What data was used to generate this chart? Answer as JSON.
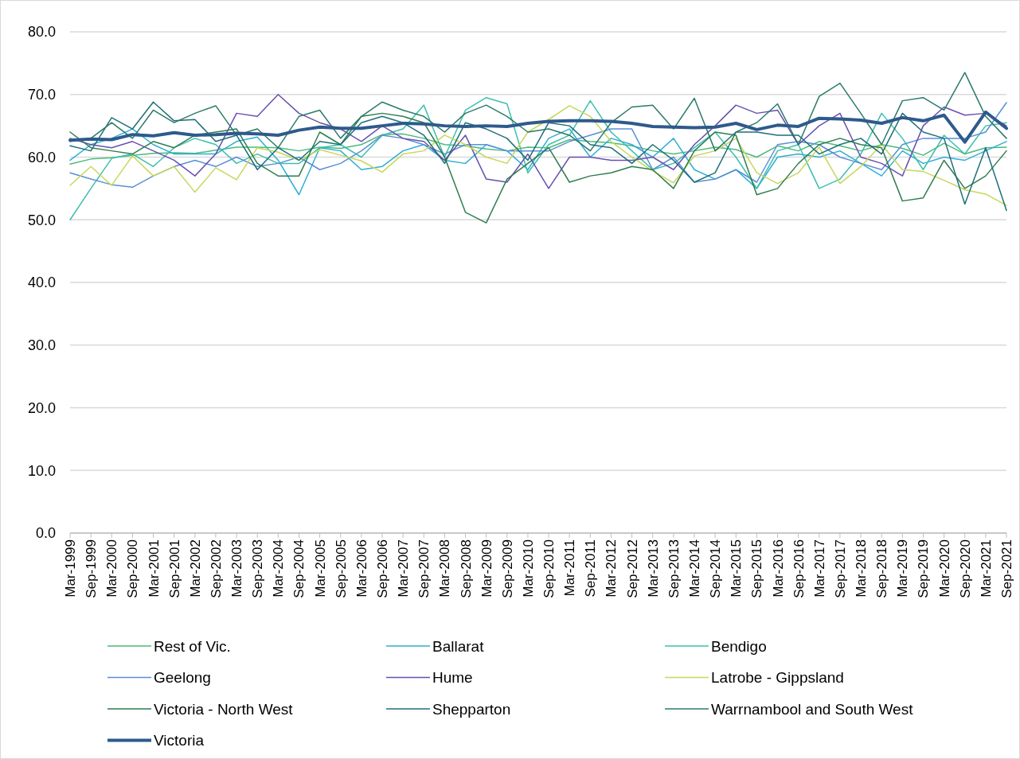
{
  "chart_data": {
    "type": "line",
    "categories": [
      "Mar-1999",
      "Sep-1999",
      "Mar-2000",
      "Sep-2000",
      "Mar-2001",
      "Sep-2001",
      "Mar-2002",
      "Sep-2002",
      "Mar-2003",
      "Sep-2003",
      "Mar-2004",
      "Sep-2004",
      "Mar-2005",
      "Sep-2005",
      "Mar-2006",
      "Sep-2006",
      "Mar-2007",
      "Sep-2007",
      "Mar-2008",
      "Sep-2008",
      "Mar-2009",
      "Sep-2009",
      "Mar-2010",
      "Sep-2010",
      "Mar-2011",
      "Sep-2011",
      "Mar-2012",
      "Sep-2012",
      "Mar-2013",
      "Sep-2013",
      "Mar-2014",
      "Sep-2014",
      "Mar-2015",
      "Sep-2015",
      "Mar-2016",
      "Sep-2016",
      "Mar-2017",
      "Sep-2017",
      "Mar-2018",
      "Sep-2018",
      "Mar-2019",
      "Sep-2019",
      "Mar-2020",
      "Sep-2020",
      "Mar-2021",
      "Sep-2021"
    ],
    "series": [
      {
        "name": "Rest of Vic.",
        "color": "#4cba78",
        "values": [
          58.9,
          59.7,
          59.9,
          60.3,
          60.6,
          60.7,
          60.6,
          61.1,
          61.6,
          61.6,
          61.5,
          61.0,
          61.6,
          61.4,
          62.0,
          63.6,
          63.7,
          63.0,
          62.0,
          61.8,
          61.3,
          61.0,
          61.6,
          61.5,
          62.8,
          62.5,
          62.3,
          61.8,
          61.0,
          60.5,
          61.0,
          61.6,
          61.2,
          60.0,
          61.8,
          61.0,
          62.5,
          61.8,
          61.0,
          62.0,
          61.4,
          60.3,
          62.2,
          60.5,
          61.5,
          61.6
        ]
      },
      {
        "name": "Ballarat",
        "color": "#2eaed6",
        "values": [
          59.5,
          62.0,
          63.0,
          64.5,
          62.0,
          60.5,
          60.5,
          60.5,
          62.5,
          63.2,
          59.5,
          54.0,
          61.5,
          61.0,
          58.0,
          58.5,
          61.0,
          62.0,
          59.5,
          59.0,
          62.0,
          61.0,
          58.0,
          63.0,
          64.5,
          60.0,
          63.0,
          62.0,
          60.0,
          63.0,
          58.0,
          56.5,
          58.0,
          55.0,
          60.0,
          60.5,
          60.0,
          61.0,
          59.0,
          57.0,
          61.0,
          59.0,
          60.0,
          59.5,
          61.0,
          62.5
        ]
      },
      {
        "name": "Bendigo",
        "color": "#3cbfae",
        "values": [
          50.0,
          55.0,
          59.8,
          60.5,
          58.5,
          61.5,
          63.0,
          62.0,
          59.0,
          60.5,
          59.0,
          59.0,
          61.5,
          62.0,
          60.0,
          63.5,
          64.5,
          68.3,
          60.0,
          67.5,
          69.5,
          68.5,
          57.5,
          62.0,
          63.5,
          69.0,
          64.0,
          61.0,
          58.0,
          59.0,
          61.5,
          64.0,
          60.0,
          55.0,
          61.0,
          62.0,
          55.0,
          56.5,
          60.5,
          67.0,
          63.0,
          58.0,
          63.5,
          60.5,
          65.0,
          65.5
        ]
      },
      {
        "name": "Geelong",
        "color": "#5b8fd6",
        "values": [
          57.5,
          56.5,
          55.6,
          55.2,
          57.0,
          58.5,
          59.5,
          58.5,
          60.0,
          58.5,
          59.0,
          60.0,
          58.0,
          59.0,
          61.0,
          63.5,
          63.0,
          62.0,
          60.5,
          62.0,
          62.0,
          61.0,
          61.0,
          61.0,
          62.5,
          63.5,
          64.5,
          64.5,
          58.0,
          60.0,
          56.0,
          56.5,
          58.0,
          56.0,
          62.0,
          62.5,
          62.0,
          60.0,
          59.0,
          58.0,
          62.0,
          63.0,
          63.0,
          63.0,
          64.0,
          68.7
        ]
      },
      {
        "name": "Hume",
        "color": "#6a4fb0",
        "values": [
          63.0,
          62.0,
          61.5,
          62.5,
          61.0,
          59.5,
          57.0,
          60.5,
          67.0,
          66.5,
          70.0,
          67.0,
          65.5,
          64.5,
          62.5,
          65.0,
          63.0,
          62.5,
          59.5,
          63.5,
          56.5,
          56.0,
          60.5,
          55.0,
          60.0,
          60.0,
          59.5,
          59.5,
          60.0,
          58.0,
          62.0,
          65.0,
          68.3,
          67.0,
          67.5,
          62.0,
          65.0,
          67.0,
          60.0,
          59.0,
          57.0,
          65.0,
          68.0,
          66.7,
          67.0,
          65.0
        ]
      },
      {
        "name": "Latrobe - Gippsland",
        "color": "#c9d65a",
        "values": [
          55.5,
          58.5,
          55.5,
          60.2,
          57.0,
          58.5,
          54.4,
          58.3,
          56.4,
          61.5,
          60.8,
          59.5,
          61.2,
          60.3,
          59.4,
          57.6,
          60.5,
          61.0,
          63.5,
          62.0,
          60.0,
          59.0,
          64.0,
          66.0,
          68.2,
          66.5,
          62.5,
          60.0,
          57.8,
          55.9,
          60.2,
          61.0,
          63.0,
          57.5,
          55.8,
          57.5,
          61.6,
          55.8,
          58.5,
          62.0,
          58.0,
          57.7,
          56.3,
          54.8,
          54.1,
          52.3
        ]
      },
      {
        "name": "Victoria - North West",
        "color": "#2e7d4f",
        "values": [
          64.0,
          61.5,
          61.0,
          60.5,
          62.5,
          61.5,
          63.5,
          64.0,
          64.5,
          59.0,
          57.0,
          57.0,
          64.0,
          62.0,
          66.5,
          67.0,
          66.5,
          65.5,
          60.0,
          51.2,
          49.5,
          56.5,
          59.0,
          61.5,
          56.0,
          57.0,
          57.5,
          58.5,
          58.0,
          55.0,
          61.0,
          64.0,
          63.5,
          54.0,
          55.0,
          59.0,
          62.0,
          63.0,
          62.0,
          61.5,
          53.0,
          53.5,
          59.5,
          55.0,
          57.0,
          61.0
        ]
      },
      {
        "name": "Shepparton",
        "color": "#1e6f7a",
        "values": [
          61.8,
          61.0,
          66.3,
          64.5,
          68.8,
          65.8,
          66.0,
          62.5,
          63.5,
          58.0,
          61.5,
          59.5,
          62.5,
          62.0,
          65.5,
          66.5,
          65.5,
          63.5,
          59.0,
          65.5,
          64.5,
          63.0,
          59.5,
          65.5,
          65.0,
          62.0,
          61.5,
          59.0,
          62.0,
          59.5,
          56.0,
          57.5,
          64.0,
          64.0,
          63.5,
          63.5,
          60.5,
          62.0,
          63.0,
          60.5,
          67.0,
          64.0,
          63.0,
          52.5,
          61.5,
          51.5
        ]
      },
      {
        "name": "Warrnambool and South West",
        "color": "#2a7a6a",
        "values": [
          62.5,
          63.0,
          65.5,
          63.0,
          67.5,
          65.5,
          67.0,
          68.2,
          63.5,
          64.5,
          61.5,
          66.5,
          67.5,
          63.0,
          66.5,
          68.8,
          67.5,
          66.5,
          64.0,
          67.0,
          68.3,
          66.5,
          64.0,
          64.5,
          63.5,
          61.0,
          65.5,
          68.0,
          68.3,
          64.5,
          69.4,
          61.0,
          64.0,
          65.5,
          68.5,
          62.0,
          69.7,
          71.8,
          67.0,
          62.0,
          69.0,
          69.5,
          67.5,
          73.5,
          66.5,
          63.0
        ]
      },
      {
        "name": "Victoria",
        "color": "#2e5a8c",
        "values": [
          62.7,
          62.9,
          62.8,
          63.6,
          63.4,
          63.9,
          63.5,
          63.6,
          63.8,
          63.7,
          63.5,
          64.3,
          64.8,
          64.6,
          64.6,
          65.0,
          65.4,
          65.3,
          65.0,
          64.9,
          65.0,
          64.9,
          65.4,
          65.7,
          65.8,
          65.8,
          65.7,
          65.4,
          64.9,
          64.8,
          64.7,
          64.8,
          65.4,
          64.4,
          65.1,
          64.9,
          66.2,
          66.1,
          65.9,
          65.4,
          66.3,
          65.8,
          66.7,
          62.4,
          67.2,
          64.6
        ]
      }
    ],
    "ylim": [
      0,
      80
    ],
    "yticks": [
      {
        "value": 0,
        "label": "0.0"
      },
      {
        "value": 10,
        "label": "10.0"
      },
      {
        "value": 20,
        "label": "20.0"
      },
      {
        "value": 30,
        "label": "30.0"
      },
      {
        "value": 40,
        "label": "40.0"
      },
      {
        "value": 50,
        "label": "50.0"
      },
      {
        "value": 60,
        "label": "60.0"
      },
      {
        "value": 70,
        "label": "70.0"
      },
      {
        "value": 80,
        "label": "80.0"
      }
    ],
    "grid": "y",
    "legend": "bottom",
    "marker": "none",
    "line_style": "solid"
  }
}
